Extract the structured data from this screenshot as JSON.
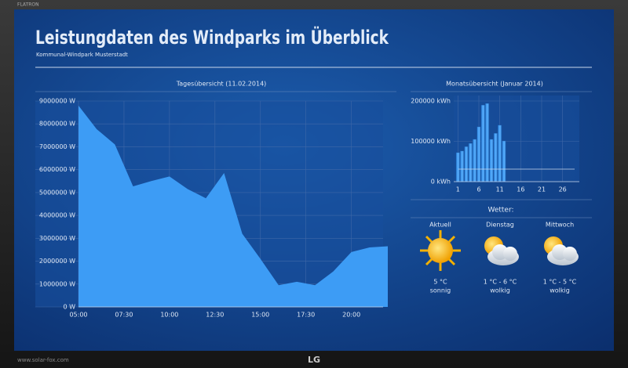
{
  "brand": {
    "top": "FLATRON",
    "bottom": "LG",
    "site": "www.solar-fox.com"
  },
  "header": {
    "title": "Leistungdaten des Windparks im Überblick",
    "subtitle": "Kommunal-Windpark Musterstadt"
  },
  "chart_data": [
    {
      "type": "area",
      "title": "Tagesübersicht (11.02.2014)",
      "color": "#3d9cf5",
      "x": [
        5,
        6,
        7,
        8,
        9,
        10,
        11,
        12,
        13,
        14,
        15,
        16,
        17,
        18,
        19,
        20,
        21,
        22
      ],
      "values": [
        8800000,
        7770000,
        7100000,
        5270000,
        5500000,
        5700000,
        5150000,
        4750000,
        5850000,
        3200000,
        2100000,
        950000,
        1100000,
        950000,
        1550000,
        2400000,
        2600000,
        2650000
      ],
      "xlim": [
        5,
        22
      ],
      "xticks": [
        {
          "value": 5,
          "label": "05:00"
        },
        {
          "value": 7.5,
          "label": "07:30"
        },
        {
          "value": 10,
          "label": "10:00"
        },
        {
          "value": 12.5,
          "label": "12:30"
        },
        {
          "value": 15,
          "label": "15:00"
        },
        {
          "value": 17.5,
          "label": "17:30"
        },
        {
          "value": 20,
          "label": "20:00"
        }
      ],
      "ylim": [
        0,
        9000000
      ],
      "yticks": [
        {
          "value": 0,
          "label": "0 W"
        },
        {
          "value": 1000000,
          "label": "1000000 W"
        },
        {
          "value": 2000000,
          "label": "2000000 W"
        },
        {
          "value": 3000000,
          "label": "3000000 W"
        },
        {
          "value": 4000000,
          "label": "4000000 W"
        },
        {
          "value": 5000000,
          "label": "5000000 W"
        },
        {
          "value": 6000000,
          "label": "6000000 W"
        },
        {
          "value": 7000000,
          "label": "7000000 W"
        },
        {
          "value": 8000000,
          "label": "8000000 W"
        },
        {
          "value": 9000000,
          "label": "9000000 W"
        }
      ],
      "grid": true
    },
    {
      "type": "bar",
      "title": "Monatsübersicht (Januar 2014)",
      "color": "#3d9cf5",
      "x": [
        1,
        2,
        3,
        4,
        5,
        6,
        7,
        8,
        9,
        10,
        11,
        12
      ],
      "values": [
        72000,
        76000,
        87000,
        95000,
        105000,
        136000,
        190000,
        194000,
        105000,
        120000,
        140000,
        101000
      ],
      "hline": 31000,
      "xlim": [
        0,
        30
      ],
      "xticks": [
        1,
        6,
        11,
        16,
        21,
        26
      ],
      "ylim": [
        0,
        200000
      ],
      "yticks": [
        {
          "value": 0,
          "label": "0 kWh"
        },
        {
          "value": 100000,
          "label": "100000 kWh"
        },
        {
          "value": 200000,
          "label": "200000 kWh"
        }
      ],
      "grid": true
    }
  ],
  "weather": {
    "title": "Wetter:",
    "days": [
      {
        "day": "Aktuell",
        "temp": "5 °C",
        "desc": "sonnig",
        "icon": "sun"
      },
      {
        "day": "Dienstag",
        "temp": "1 °C - 6 °C",
        "desc": "wolkig",
        "icon": "cloud"
      },
      {
        "day": "Mittwoch",
        "temp": "1 °C - 5 °C",
        "desc": "wolkig",
        "icon": "cloud"
      }
    ]
  }
}
